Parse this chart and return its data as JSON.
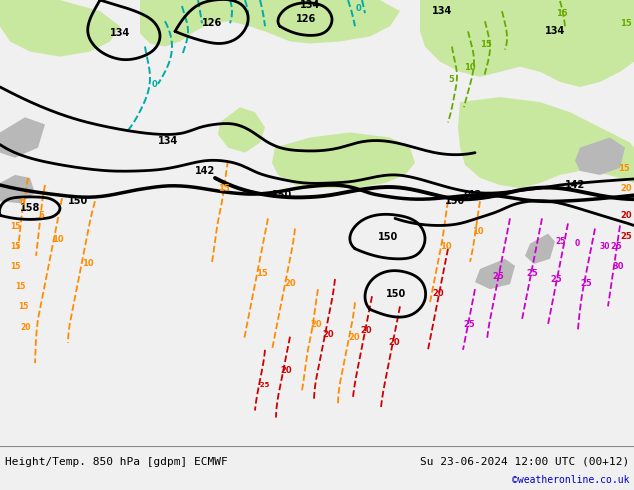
{
  "title_left": "Height/Temp. 850 hPa [gdpm] ECMWF",
  "title_right": "Su 23-06-2024 12:00 UTC (00+12)",
  "copyright": "©weatheronline.co.uk",
  "bg_color": "#f0f0f0",
  "bottom_bar_color": "#e0e0e0",
  "label_color_black": "#000000",
  "cyan_color": "#00aaaa",
  "orange_color": "#ff8c00",
  "red_color": "#cc0000",
  "magenta_color": "#cc00cc",
  "green_color": "#66aa00",
  "copyright_color": "#0000cc",
  "font_size_bottom": 8,
  "font_size_copyright": 7,
  "map_green_light": "#c8e8a0",
  "map_gray": "#b8b8b8",
  "map_white": "#f5f5f5",
  "map_gray2": "#c8c8c8"
}
